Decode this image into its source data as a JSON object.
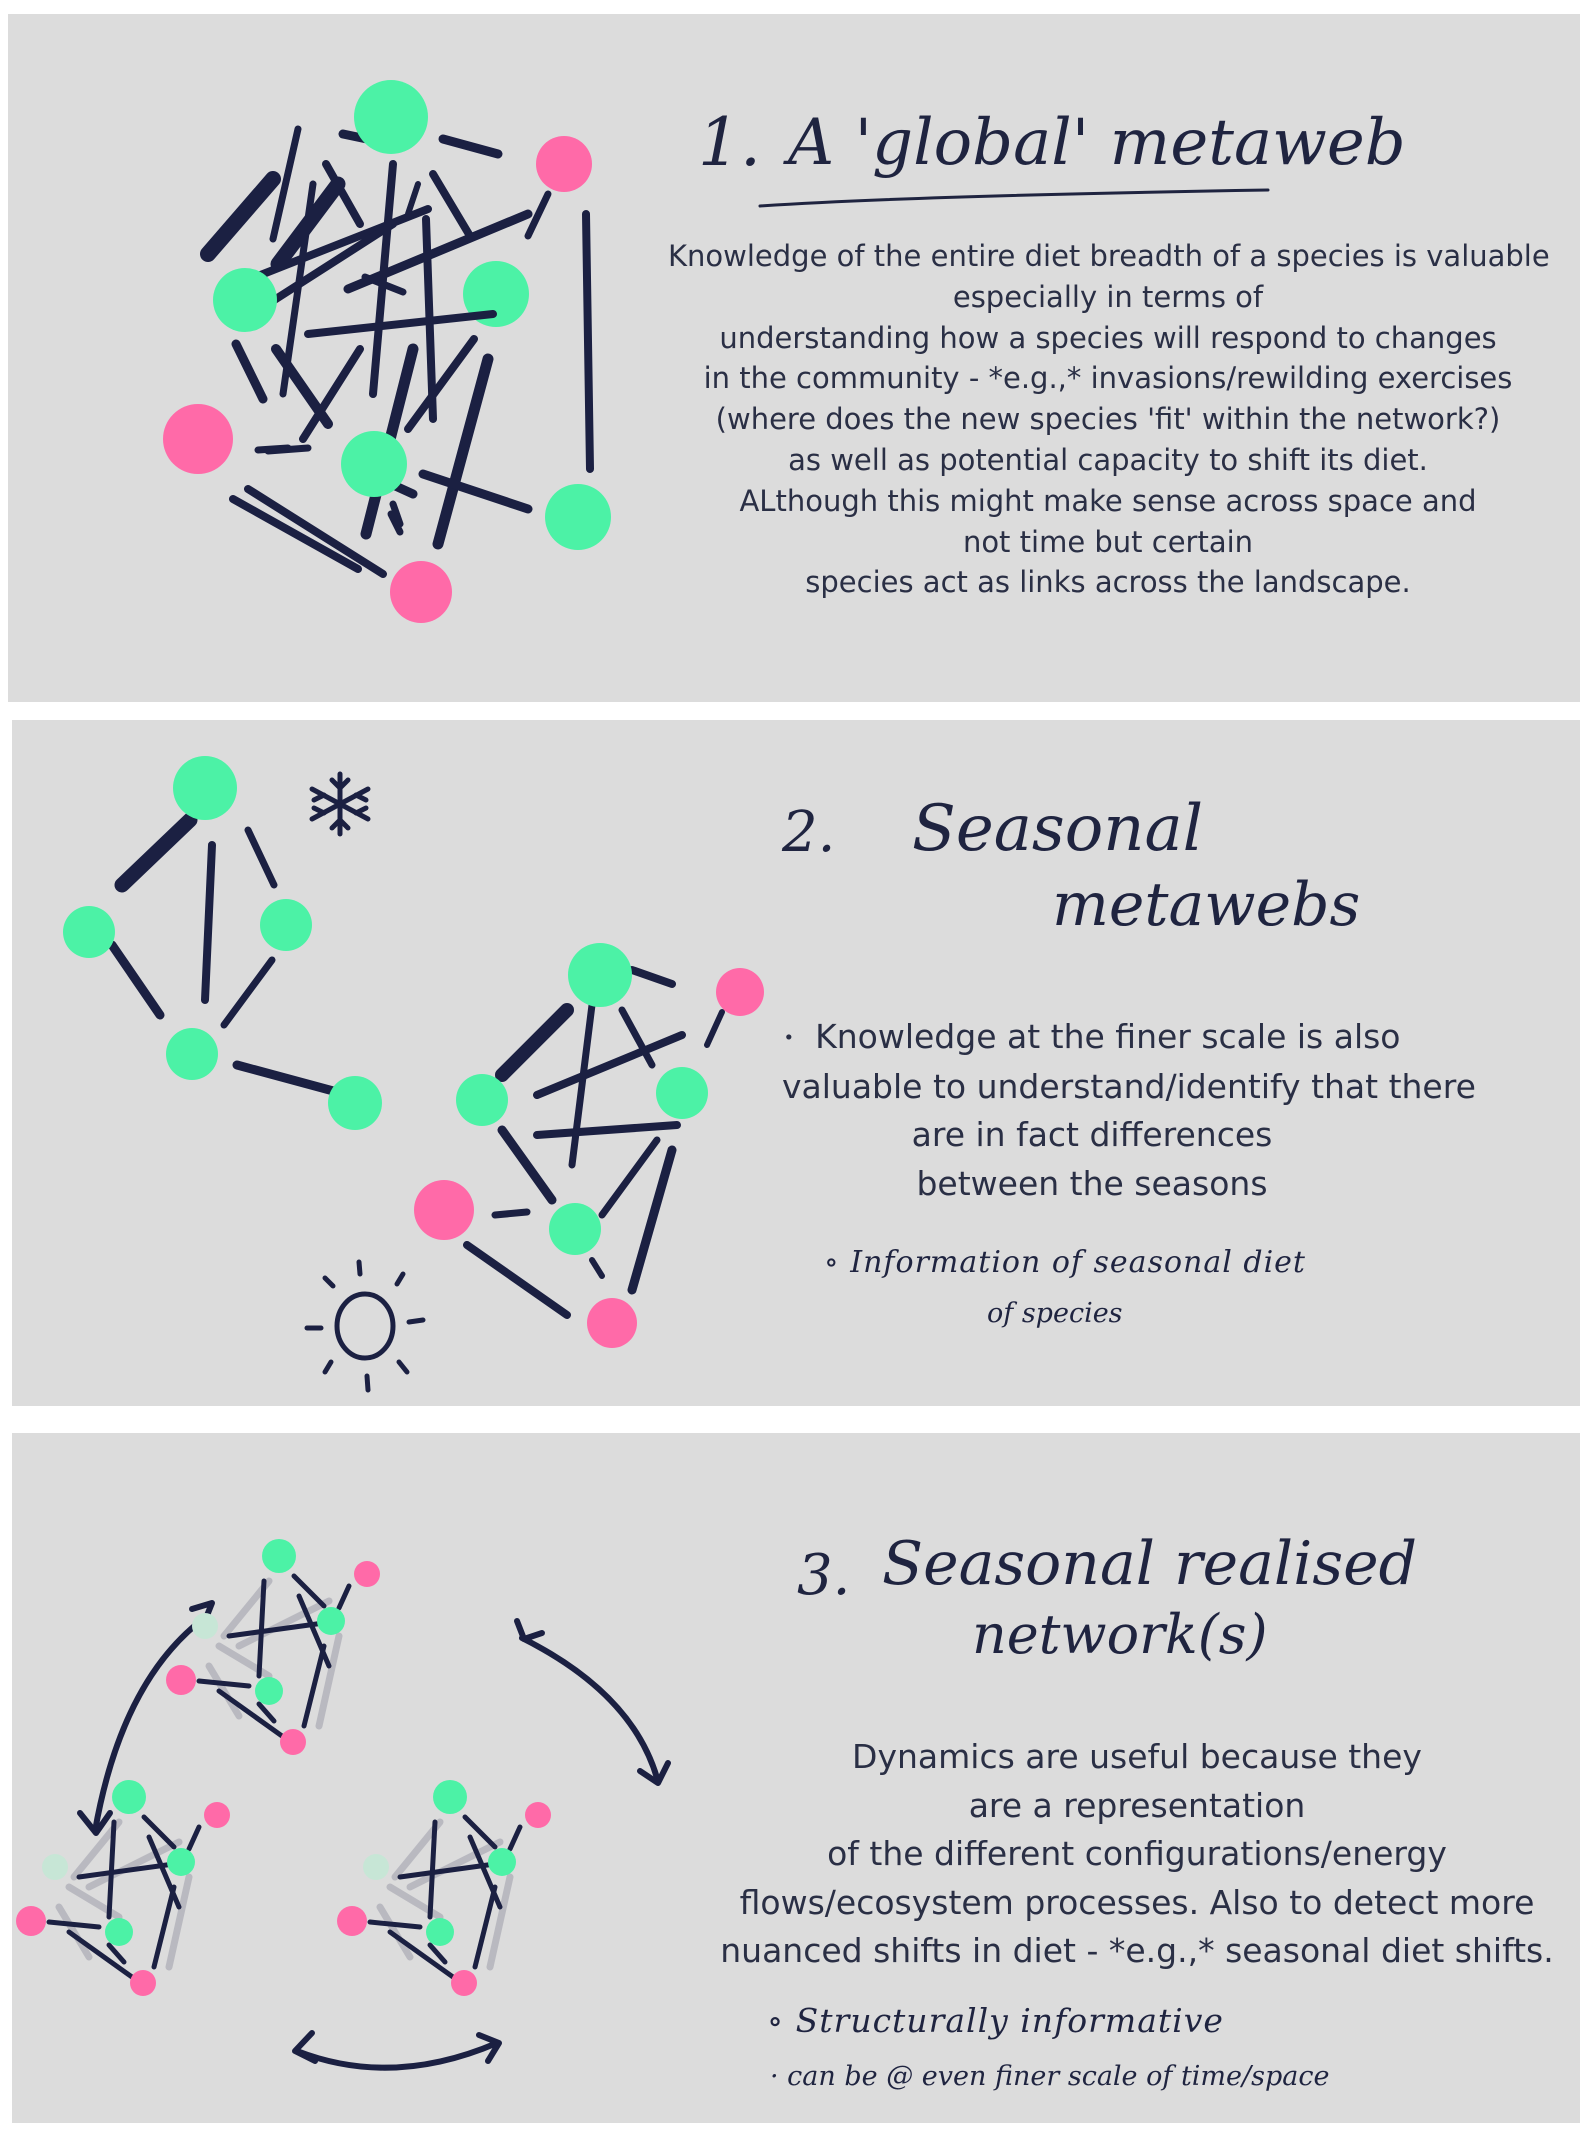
{
  "colors": {
    "panel_bg": "#dcdcdc",
    "green_node": "#4cf2a6",
    "pink_node": "#ff6aa8",
    "link": "#1b2042",
    "faded_link": "#b9b9c0",
    "text": "#2a2f45"
  },
  "panel1": {
    "number": "1.",
    "title": "A 'global' metaweb",
    "body": [
      "Knowledge of the entire diet breadth of a species is valuable",
      "especially in terms of",
      "understanding how a species will respond to changes",
      "in the community - *e.g.,* invasions/rewilding exercises",
      "(where does the new species 'fit' within the network?)",
      "as well as potential capacity to shift its diet.",
      "ALthough this might make sense across space and",
      "not time but certain",
      "species act as links across the landscape."
    ]
  },
  "panel2": {
    "number": "2.",
    "title_line1": "Seasonal",
    "title_line2": "metawebs",
    "body": [
      "Knowledge at the finer scale is also",
      "valuable to understand/identify that there",
      "are in fact differences",
      "between the seasons"
    ],
    "note_line1": "Information of seasonal diet",
    "note_line2": "of species",
    "icons": [
      "snowflake-icon",
      "sun-icon"
    ]
  },
  "panel3": {
    "number": "3.",
    "title_line1": "Seasonal realised",
    "title_line2": "network(s)",
    "body": [
      "Dynamics are useful because they",
      "are a representation",
      "of the different configurations/energy",
      "flows/ecosystem processes. Also to detect more",
      "nuanced shifts in diet - *e.g.,* seasonal diet shifts."
    ],
    "note_line1": "Structurally informative",
    "note_line2": "can be @ even finer scale of time/space"
  }
}
